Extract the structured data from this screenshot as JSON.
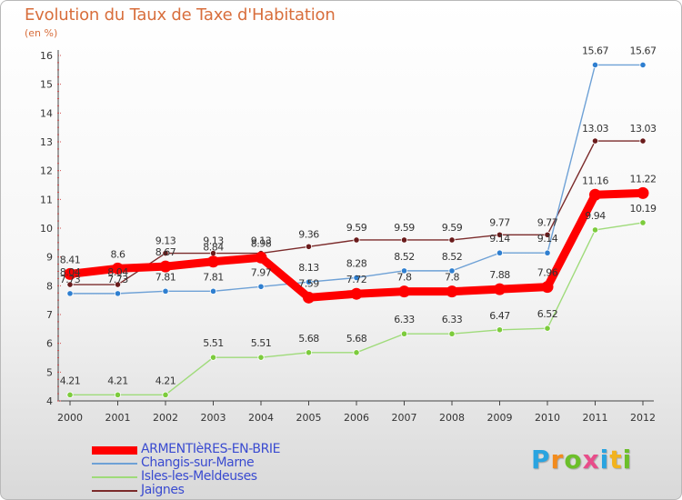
{
  "header": {
    "title": "Evolution du Taux de Taxe d'Habitation",
    "subtitle": "(en %)"
  },
  "logo": {
    "letters": [
      "P",
      "r",
      "o",
      "x",
      "i",
      "t",
      "i"
    ],
    "colors": [
      "#2aa4e0",
      "#f28b1d",
      "#6cbf2a",
      "#e84d8a",
      "#2aa4e0",
      "#f2b31d",
      "#6cbf2a"
    ]
  },
  "chart_data": {
    "type": "line",
    "title": "Evolution du Taux de Taxe d'Habitation",
    "ylabel": "(en %)",
    "xlabel": "",
    "categories": [
      "2000",
      "2001",
      "2002",
      "2003",
      "2004",
      "2005",
      "2006",
      "2007",
      "2008",
      "2009",
      "2010",
      "2011",
      "2012"
    ],
    "ylim": [
      4,
      16
    ],
    "yticks": [
      "4",
      "5",
      "6",
      "7",
      "8",
      "9",
      "10",
      "11",
      "12",
      "13",
      "14",
      "15",
      "16"
    ],
    "grid": false,
    "legend_position": "bottom-left",
    "series": [
      {
        "name": "Jaignes",
        "color": "#7b2b2b",
        "marker": "#6a1b1b",
        "values": [
          8.04,
          8.04,
          9.13,
          9.13,
          9.13,
          9.36,
          9.59,
          9.59,
          9.59,
          9.77,
          9.77,
          13.03,
          13.03
        ],
        "labels": [
          "8.04",
          "8.04",
          "9.13",
          "9.13",
          "9.13",
          "9.36",
          "9.59",
          "9.59",
          "9.59",
          "9.77",
          "9.77",
          "13.03",
          "13.03"
        ]
      },
      {
        "name": "Changis-sur-Marne",
        "color": "#6ea1d6",
        "marker": "#2f7fd0",
        "values": [
          7.73,
          7.73,
          7.81,
          7.81,
          7.97,
          8.13,
          8.28,
          8.52,
          8.52,
          9.14,
          9.14,
          15.67,
          15.67
        ],
        "labels": [
          "7.73",
          "7.73",
          "7.81",
          "7.81",
          "7.97",
          "8.13",
          "8.28",
          "8.52",
          "8.52",
          "9.14",
          "9.14",
          "15.67",
          "15.67"
        ]
      },
      {
        "name": "Isles-les-Meldeuses",
        "color": "#9fdb7a",
        "marker": "#7ccb3c",
        "values": [
          4.21,
          4.21,
          4.21,
          5.51,
          5.51,
          5.68,
          5.68,
          6.33,
          6.33,
          6.47,
          6.52,
          9.94,
          10.19
        ],
        "labels": [
          "4.21",
          "4.21",
          "4.21",
          "5.51",
          "5.51",
          "5.68",
          "5.68",
          "6.33",
          "6.33",
          "6.47",
          "6.52",
          "9.94",
          "10.19"
        ]
      },
      {
        "name": "ARMENTIèRES-EN-BRIE",
        "color": "#ff0000",
        "marker": "#ff0000",
        "values": [
          8.41,
          8.6,
          8.67,
          8.84,
          8.98,
          7.59,
          7.72,
          7.8,
          7.8,
          7.88,
          7.96,
          11.16,
          11.22
        ],
        "labels": [
          "8.41",
          "8.6",
          "8.67",
          "8.84",
          "8.98",
          "7.59",
          "7.72",
          "7.8",
          "7.8",
          "7.88",
          "7.96",
          "11.16",
          "11.22"
        ]
      }
    ],
    "legend_order": [
      3,
      1,
      2,
      0
    ]
  }
}
